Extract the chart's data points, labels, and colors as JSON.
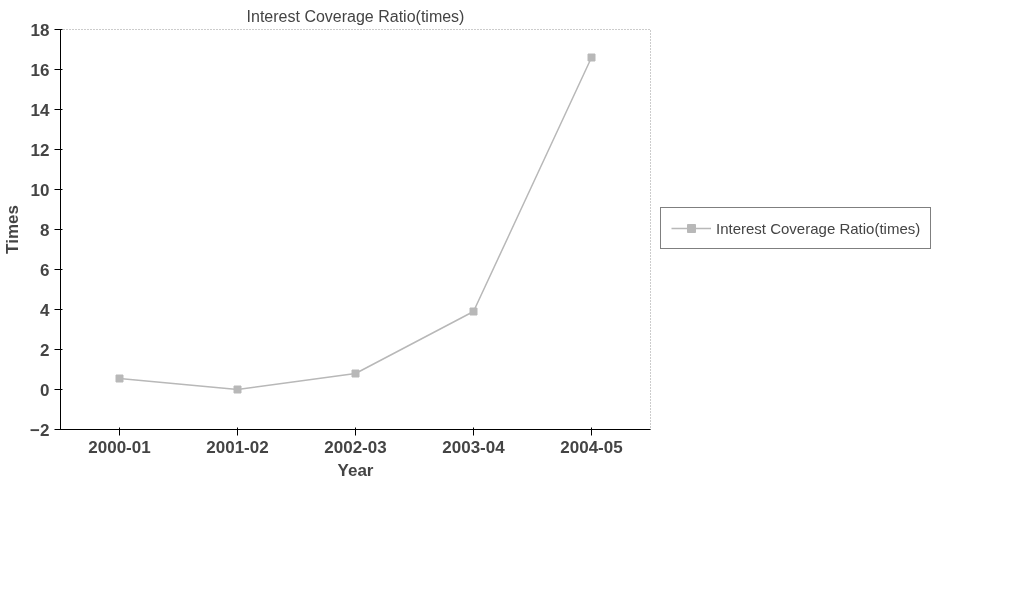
{
  "chart_data": {
    "type": "line",
    "title": "Interest Coverage Ratio(times)",
    "xlabel": "Year",
    "ylabel": "Times",
    "categories": [
      "2000-01",
      "2001-02",
      "2002-03",
      "2003-04",
      "2004-05"
    ],
    "series": [
      {
        "name": "Interest Coverage Ratio(times)",
        "color": "#b8b8b8",
        "values": [
          0.55,
          0,
          0.8,
          3.9,
          16.6
        ]
      }
    ],
    "ylim": [
      -2,
      18
    ],
    "yticks": [
      -2,
      0,
      2,
      4,
      6,
      8,
      10,
      12,
      14,
      16,
      18
    ],
    "grid": false,
    "legend": "right",
    "marker": "square",
    "line_style": "solid"
  }
}
